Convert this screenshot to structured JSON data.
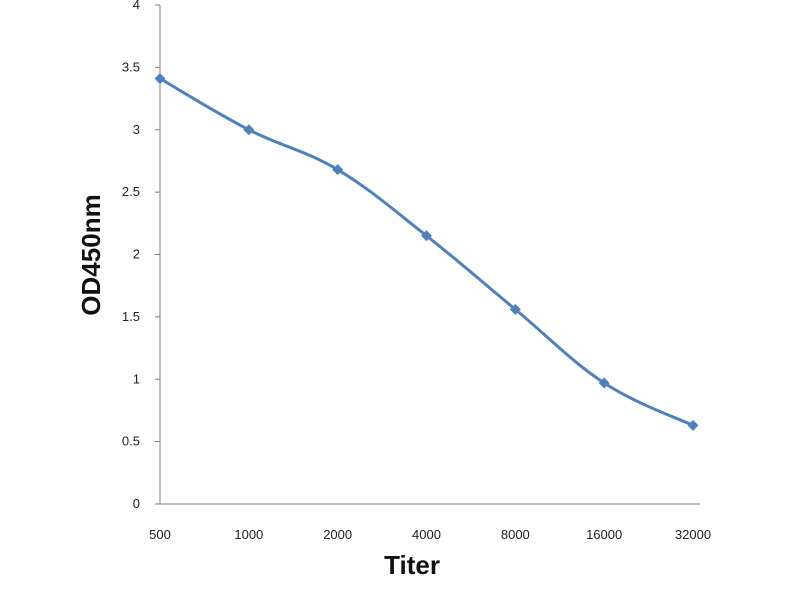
{
  "chart_data": {
    "type": "line",
    "title": "",
    "xlabel": "Titer",
    "ylabel": "OD450nm",
    "categories": [
      "500",
      "1000",
      "2000",
      "4000",
      "8000",
      "16000",
      "32000"
    ],
    "series": [
      {
        "values": [
          3.41,
          3.0,
          2.68,
          2.15,
          1.56,
          0.97,
          0.63
        ],
        "color": "#4f81bd",
        "marker": "diamond",
        "smooth": true
      }
    ],
    "ylim": [
      0,
      4
    ],
    "yticks": [
      "0",
      "0.5",
      "1",
      "1.5",
      "2",
      "2.5",
      "3",
      "3.5",
      "4"
    ],
    "grid": false,
    "legend": "none"
  }
}
